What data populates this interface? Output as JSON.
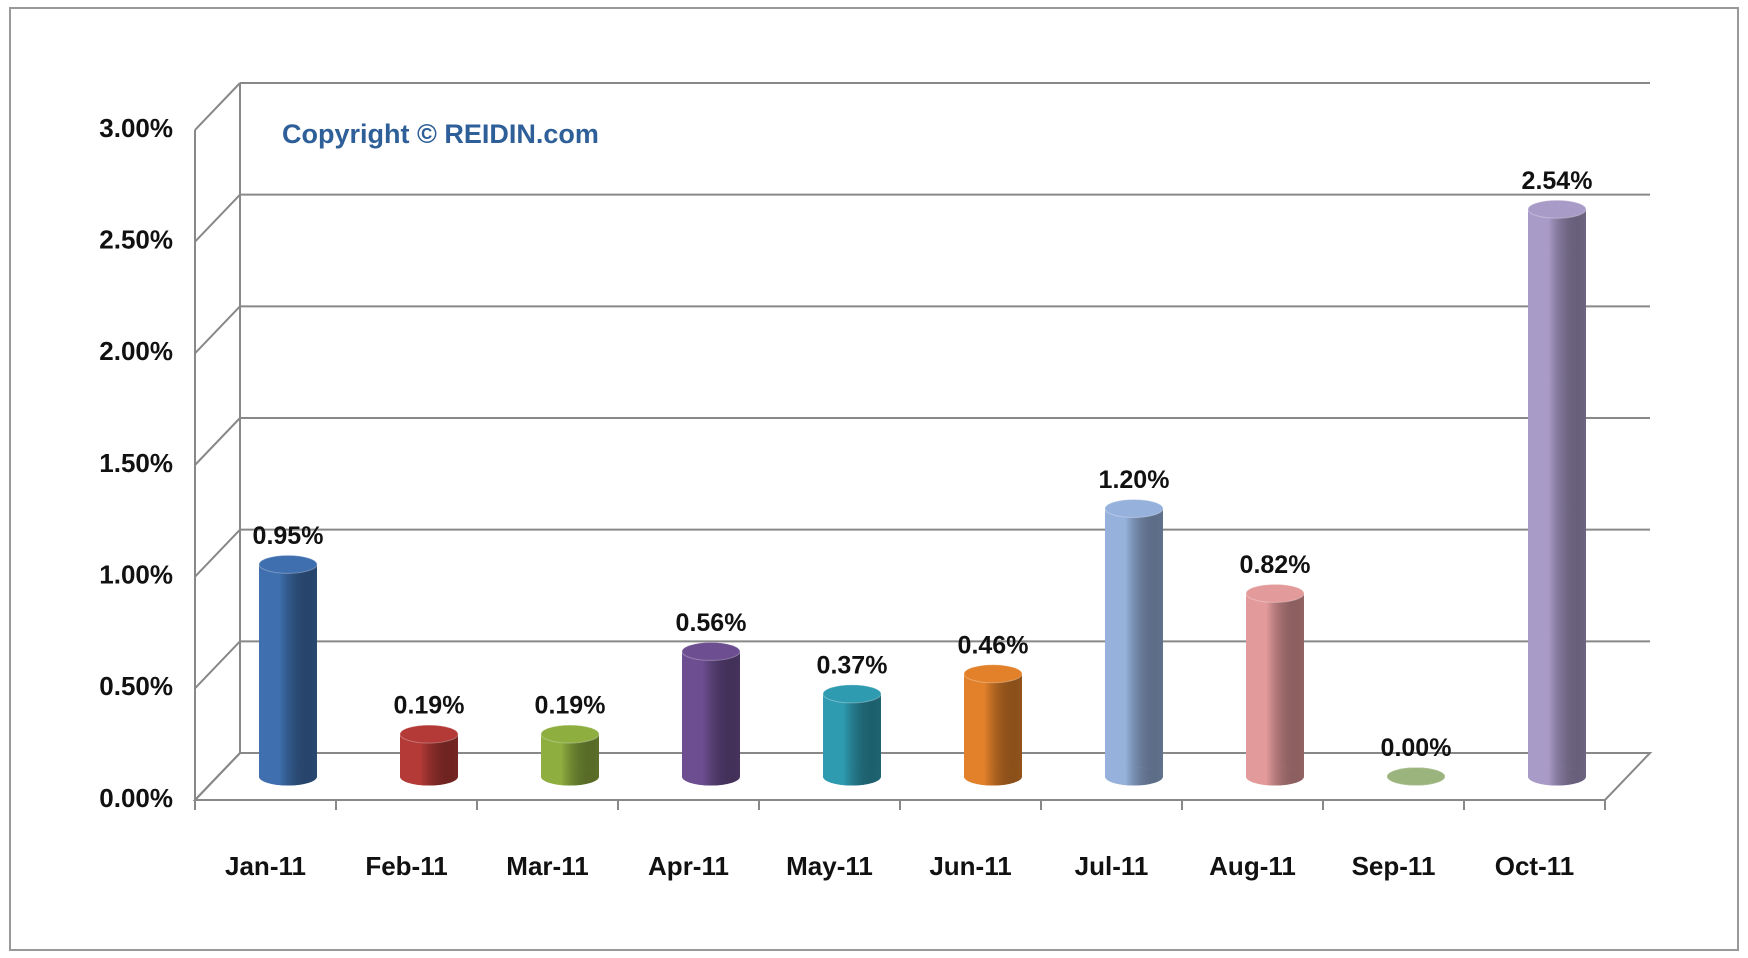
{
  "chart_data": {
    "type": "bar",
    "annotation": "Copyright © REIDIN.com",
    "categories": [
      "Jan-11",
      "Feb-11",
      "Mar-11",
      "Apr-11",
      "May-11",
      "Jun-11",
      "Jul-11",
      "Aug-11",
      "Sep-11",
      "Oct-11"
    ],
    "values": [
      0.95,
      0.19,
      0.19,
      0.56,
      0.37,
      0.46,
      1.2,
      0.82,
      0.0,
      2.54
    ],
    "value_labels": [
      "0.95%",
      "0.19%",
      "0.19%",
      "0.56%",
      "0.37%",
      "0.46%",
      "1.20%",
      "0.82%",
      "0.00%",
      "2.54%"
    ],
    "colors": [
      "#3f6fae",
      "#b43a37",
      "#8eae3f",
      "#6d4f91",
      "#2f9bb1",
      "#e2812a",
      "#96b1dc",
      "#e39a9b",
      "#9bb37c",
      "#a99bc8"
    ],
    "ylim": [
      0,
      3
    ],
    "yticks": [
      {
        "value": 0,
        "label": "0.00%"
      },
      {
        "value": 0.5,
        "label": "0.50%"
      },
      {
        "value": 1,
        "label": "1.00%"
      },
      {
        "value": 1.5,
        "label": "1.50%"
      },
      {
        "value": 2,
        "label": "2.00%"
      },
      {
        "value": 2.5,
        "label": "2.50%"
      },
      {
        "value": 3,
        "label": "3.00%"
      }
    ],
    "grid": true
  }
}
